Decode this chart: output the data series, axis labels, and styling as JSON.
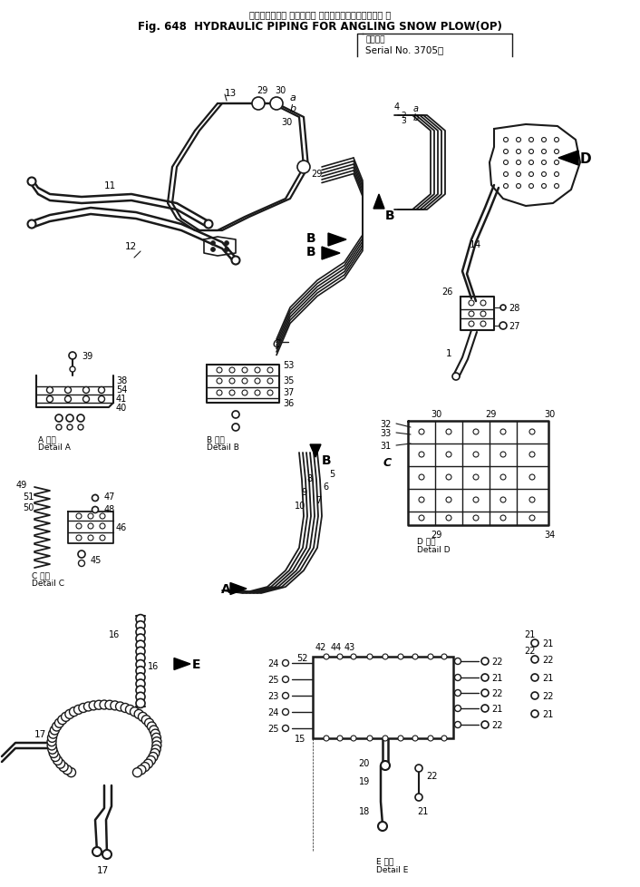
{
  "title_jp": "ハイドロリック パイピング アングリングスノウプラウ 用",
  "title_en": "Fig. 648  HYDRAULIC PIPING FOR ANGLING SNOW PLOW(OP)",
  "subtitle_jp": "適用号機",
  "subtitle_en": "Serial No. 3705～",
  "bg_color": "#ffffff",
  "lc": "#1a1a1a",
  "tc": "#000000",
  "fig_width": 7.06,
  "fig_height": 9.79,
  "dpi": 100
}
